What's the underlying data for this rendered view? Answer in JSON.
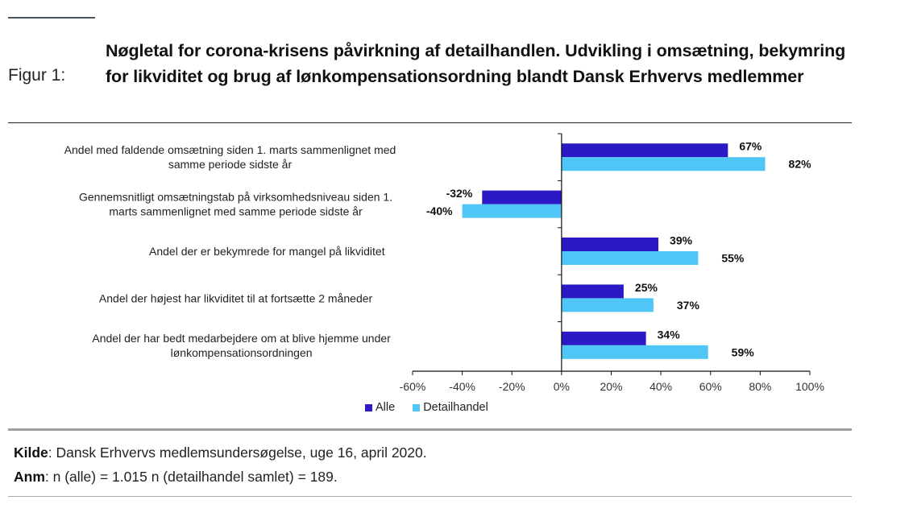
{
  "figure": {
    "label": "Figur 1:",
    "title": "Nøgletal for corona-krisens påvirkning af detailhandlen. Udvikling i omsætning, bekymring for likviditet og brug af lønkompensationsordning blandt Dansk Erhvervs medlemmer"
  },
  "footer": {
    "source_label": "Kilde",
    "source_text": ": Dansk Erhvervs medlemsundersøgelse, uge 16, april 2020.",
    "note_label": "Anm",
    "note_text": ": n (alle) = 1.015 n (detailhandel samlet) = 189."
  },
  "chart_data": {
    "type": "bar",
    "orientation": "horizontal",
    "title": "Nøgletal for corona-krisens påvirkning af detailhandlen. Udvikling i omsætning, bekymring for likviditet og brug af lønkompensationsordning blandt Dansk Erhvervs medlemmer",
    "xlabel": "",
    "ylabel": "",
    "xlim": [
      -60,
      100
    ],
    "x_ticks": [
      -60,
      -40,
      -20,
      0,
      20,
      40,
      60,
      80,
      100
    ],
    "x_tick_labels": [
      "-60%",
      "-40%",
      "-20%",
      "0%",
      "20%",
      "40%",
      "60%",
      "80%",
      "100%"
    ],
    "grid": false,
    "legend_position": "bottom-left",
    "categories": [
      [
        "Andel med faldende omsætning siden 1. marts sammenlignet med",
        "samme periode sidste år"
      ],
      [
        "Gennemsnitligt omsætningstab på virksomhedsniveau siden 1.",
        "marts sammenlignet med samme periode sidste år"
      ],
      [
        "Andel der er bekymrede for mangel på likviditet"
      ],
      [
        "Andel der højest har likviditet til at fortsætte 2 måneder"
      ],
      [
        "Andel der har bedt medarbejdere om at blive hjemme under",
        "lønkompensationsordningen"
      ]
    ],
    "series": [
      {
        "name": "Alle",
        "color": "#2a19c4",
        "values": [
          67,
          -32,
          39,
          25,
          34
        ],
        "labels": [
          "67%",
          "-32%",
          "39%",
          "25%",
          "34%"
        ]
      },
      {
        "name": "Detailhandel",
        "color": "#4fc6f5",
        "values": [
          82,
          -40,
          55,
          37,
          59
        ],
        "labels": [
          "82%",
          "-40%",
          "55%",
          "37%",
          "59%"
        ]
      }
    ]
  }
}
